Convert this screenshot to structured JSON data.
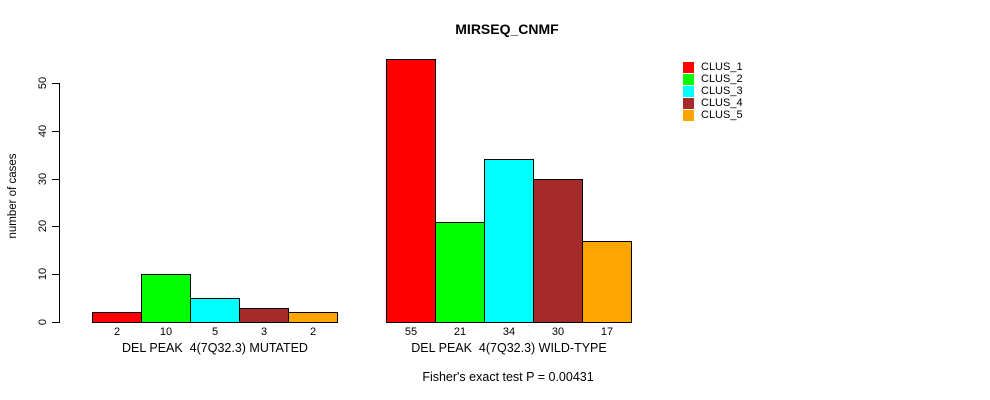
{
  "chart_data": {
    "type": "bar",
    "title": "MIRSEQ_CNMF",
    "ylabel": "number of cases",
    "ylim": [
      0,
      57
    ],
    "yticks": [
      0,
      10,
      20,
      30,
      40,
      50
    ],
    "grid": false,
    "legend_position": "right",
    "series_colors": [
      "#FF0000",
      "#00FF00",
      "#00FFFF",
      "#A52A2A",
      "#FFA500"
    ],
    "legend": [
      {
        "label": "CLUS_1",
        "color": "#FF0000"
      },
      {
        "label": "CLUS_2",
        "color": "#00FF00"
      },
      {
        "label": "CLUS_3",
        "color": "#00FFFF"
      },
      {
        "label": "CLUS_4",
        "color": "#A52A2A"
      },
      {
        "label": "CLUS_5",
        "color": "#FFA500"
      }
    ],
    "groups": [
      {
        "label": "DEL PEAK  4(7Q32.3) MUTATED",
        "categories": [
          "CLUS_1",
          "CLUS_2",
          "CLUS_3",
          "CLUS_4",
          "CLUS_5"
        ],
        "values": [
          2,
          10,
          5,
          3,
          2
        ]
      },
      {
        "label": "DEL PEAK  4(7Q32.3) WILD-TYPE",
        "categories": [
          "CLUS_1",
          "CLUS_2",
          "CLUS_3",
          "CLUS_4",
          "CLUS_5"
        ],
        "values": [
          55,
          21,
          34,
          30,
          17
        ]
      }
    ],
    "annotation": "Fisher's exact test P = 0.00431"
  }
}
